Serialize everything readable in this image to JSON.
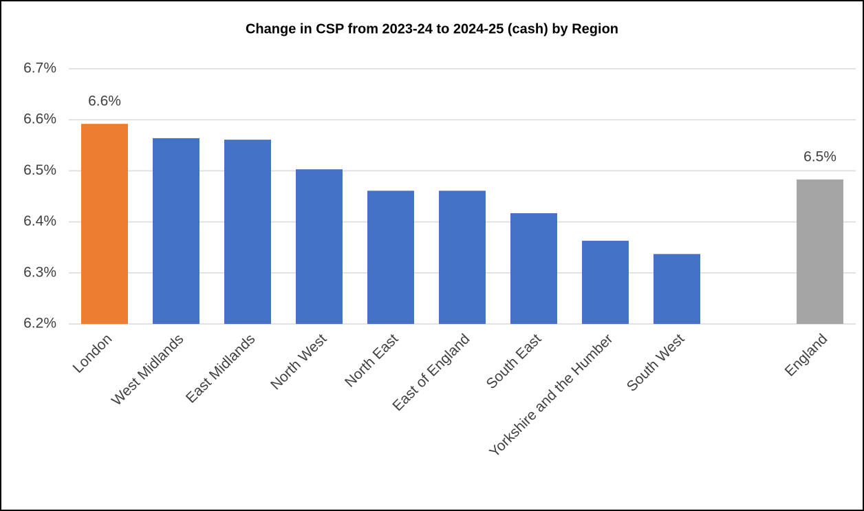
{
  "chart_data": {
    "type": "bar",
    "title": "Change in CSP from 2023-24 to 2024-25 (cash) by Region",
    "categories": [
      "London",
      "West Midlands",
      "East Midlands",
      "North West",
      "North East",
      "East of England",
      "South East",
      "Yorkshire and the Humber",
      "South West",
      null,
      "England"
    ],
    "values": [
      6.592,
      6.564,
      6.561,
      6.503,
      6.461,
      6.461,
      6.417,
      6.363,
      6.337,
      null,
      6.483
    ],
    "value_labels": [
      "6.6%",
      null,
      null,
      null,
      null,
      null,
      null,
      null,
      null,
      null,
      "6.5%"
    ],
    "colors": [
      "#ed7d31",
      "#4472c4",
      "#4472c4",
      "#4472c4",
      "#4472c4",
      "#4472c4",
      "#4472c4",
      "#4472c4",
      "#4472c4",
      null,
      "#a5a5a5"
    ],
    "ylim": [
      6.2,
      6.7
    ],
    "yticks": [
      {
        "value": 6.2,
        "label": "6.2%"
      },
      {
        "value": 6.3,
        "label": "6.3%"
      },
      {
        "value": 6.4,
        "label": "6.4%"
      },
      {
        "value": 6.5,
        "label": "6.5%"
      },
      {
        "value": 6.6,
        "label": "6.6%"
      },
      {
        "value": 6.7,
        "label": "6.7%"
      }
    ],
    "grid": true
  }
}
